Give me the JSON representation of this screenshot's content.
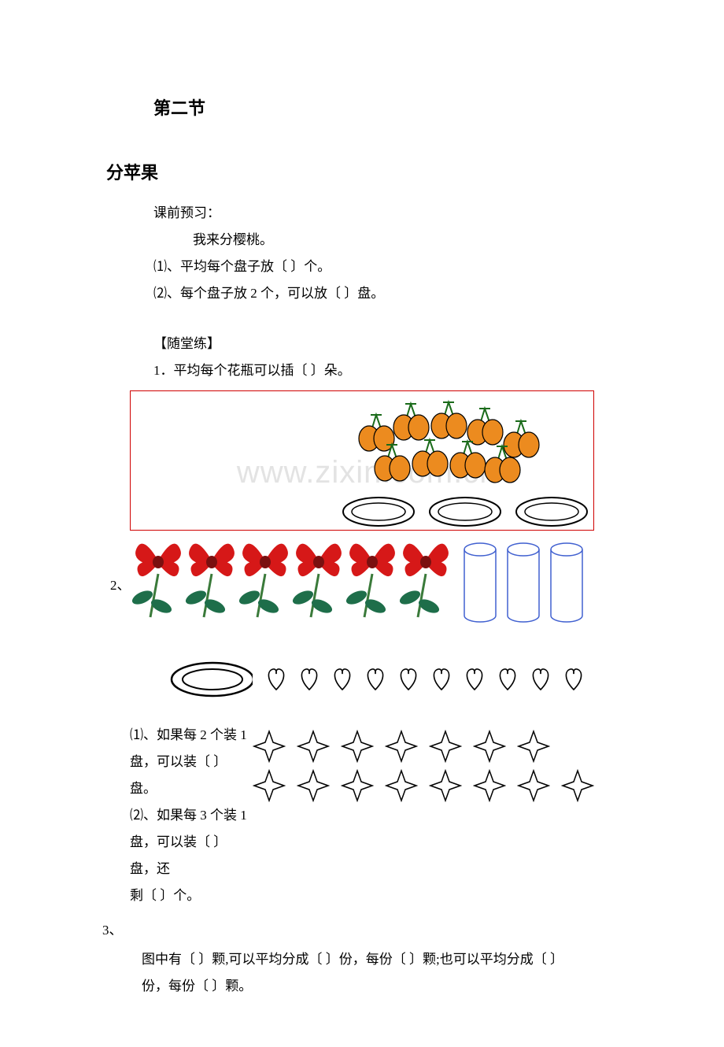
{
  "section_number": "第二节",
  "title": "分苹果",
  "preview_label": "课前预习：",
  "preview_line": "我来分樱桃。",
  "q_preview_1": "⑴、平均每个盘子放〔  〕个。",
  "q_preview_2": "⑵、每个盘子放 2 个，可以放〔  〕盘。",
  "practice_label": "【随堂练】",
  "q1": "1．平均每个花瓶可以插〔  〕朵。",
  "q2_label": "2、",
  "q2_1a": "⑴、如果每 2 个装 1",
  "q2_1b": "盘，可以装〔  〕盘。",
  "q2_2a": "⑵、如果每 3 个装 1",
  "q2_2b": "盘，可以装〔  〕盘，还",
  "q2_2c": "剩〔  〕个。",
  "q3_label": "3、",
  "q3_line1": "图中有〔  〕颗,可以平均分成〔  〕份，每份〔  〕颗;也可以平均分成〔   〕",
  "q3_line2": "份，每份〔  〕颗。",
  "watermark": "www.zixin.com.cn",
  "colors": {
    "cherry_fill": "#ec8b1f",
    "cherry_stroke": "#000000",
    "cherry_stem": "#1a6b1a",
    "plate_stroke": "#000000",
    "redbox_border": "#d00000",
    "flower_petal": "#d61818",
    "flower_center": "#7a1010",
    "flower_leaf": "#1e6e4a",
    "flower_stem": "#3a7a3a",
    "vase_stroke": "#4060d0",
    "heart_stroke": "#000000",
    "star_stroke": "#000000",
    "watermark_color": "#e3e3e3"
  },
  "counts": {
    "cherries_approx": 18,
    "plates_in_box": 3,
    "flowers": 6,
    "vases": 3,
    "hearts": 10,
    "stars_row1": 7,
    "stars_row2": 8
  }
}
